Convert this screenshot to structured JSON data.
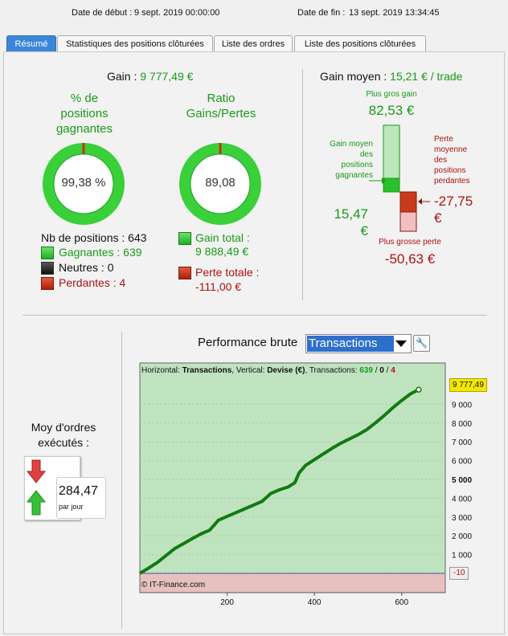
{
  "header": {
    "start_label": "Date de début :",
    "start_value": "9 sept. 2019 00:00:00",
    "end_label": "Date de fin :",
    "end_value": "13 sept. 2019 13:34:45"
  },
  "tabs": [
    {
      "label": "Résumé"
    },
    {
      "label": "Statistiques des positions clôturées"
    },
    {
      "label": "Liste des ordres"
    },
    {
      "label": "Liste des positions clôturées"
    }
  ],
  "summary": {
    "gain_label": "Gain",
    "gain_value": "9 777,49 €",
    "pct_title": "% de\npositions\ngagnantes",
    "pct_value": "99,38 %",
    "pct_fraction": 0.9938,
    "ratio_title": "Ratio\nGains/Pertes",
    "ratio_value": "89,08",
    "ratio_fraction": 0.9889,
    "nb_positions": "Nb de positions : 643",
    "gagnantes": "Gagnantes : 639",
    "neutres": "Neutres : 0",
    "perdantes": "Perdantes : 4",
    "gain_total_label": "Gain total :",
    "gain_total_value": "9 888,49 €",
    "perte_totale_label": "Perte totale :",
    "perte_totale_value": "-111,00 €"
  },
  "avg": {
    "title_label": "Gain moyen",
    "title_value": "15,21 € / trade",
    "plus_gros_gain_label": "Plus gros gain",
    "plus_gros_gain_value": "82,53 €",
    "gain_moyen_label": "Gain moyen\ndes\npositions\ngagnantes",
    "gain_moyen_value": "15,47\n€",
    "perte_moyenne_label": "Perte\nmoyenne\ndes\npositions\nperdantes",
    "perte_moyenne_value": "-27,75\n€",
    "plus_grosse_perte_label": "Plus grosse perte",
    "plus_grosse_perte_value": "-50,63 €"
  },
  "orders": {
    "title": "Moy d'ordres\nexécutés :",
    "value": "284,47",
    "unit": "par jour"
  },
  "chart": {
    "title": "Performance brute",
    "select_value": "Transactions",
    "info_prefix": "Horizontal: ",
    "info_h": "Transactions",
    "info_mid": ", Vertical: ",
    "info_v": "Devise (€)",
    "info_tx": ", Transactions: ",
    "info_win": "639",
    "info_sep1": " / ",
    "info_neutral": "0",
    "info_sep2": " / ",
    "info_loss": "4",
    "copyright": "© IT-Finance.com",
    "last_label": "9 777,49",
    "neg_label": "-10",
    "colors": {
      "profit_bg": "#bfe3bf",
      "loss_bg": "#e8c0c0",
      "line": "#127a12"
    }
  },
  "chart_data": {
    "type": "line",
    "title": "Performance brute",
    "xlabel": "",
    "ylabel": "",
    "xlim": [
      0,
      700
    ],
    "ylim": [
      -1000,
      10200
    ],
    "x_ticks": [
      200,
      400,
      600
    ],
    "y_ticks": [
      1000,
      2000,
      3000,
      4000,
      5000,
      6000,
      7000,
      8000,
      9000
    ],
    "y_tick_labels": [
      "1 000",
      "2 000",
      "3 000",
      "4 000",
      "5 000",
      "6 000",
      "7 000",
      "8 000",
      "9 000"
    ],
    "series": [
      {
        "name": "",
        "x": [
          0,
          20,
          40,
          60,
          80,
          100,
          120,
          140,
          160,
          180,
          200,
          220,
          240,
          260,
          280,
          300,
          320,
          340,
          355,
          365,
          380,
          400,
          420,
          440,
          460,
          480,
          500,
          520,
          540,
          560,
          580,
          600,
          620,
          639
        ],
        "y": [
          0,
          280,
          580,
          950,
          1320,
          1580,
          1850,
          2100,
          2300,
          2830,
          3030,
          3230,
          3430,
          3630,
          3830,
          4250,
          4450,
          4600,
          4820,
          5350,
          5750,
          6050,
          6350,
          6650,
          6920,
          7150,
          7380,
          7650,
          8010,
          8400,
          8820,
          9200,
          9550,
          9777.49
        ]
      }
    ]
  }
}
